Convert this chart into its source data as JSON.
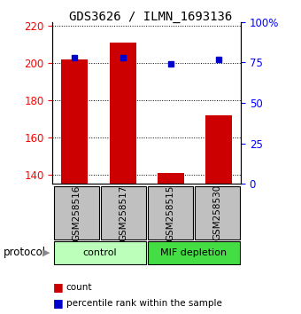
{
  "title": "GDS3626 / ILMN_1693136",
  "samples": [
    "GSM258516",
    "GSM258517",
    "GSM258515",
    "GSM258530"
  ],
  "counts": [
    202,
    211,
    141,
    172
  ],
  "percentile_ranks": [
    78,
    78,
    74,
    77
  ],
  "groups": [
    {
      "label": "control",
      "indices": [
        0,
        1
      ],
      "color": "#bbffbb"
    },
    {
      "label": "MIF depletion",
      "indices": [
        2,
        3
      ],
      "color": "#44dd44"
    }
  ],
  "ylim_left": [
    135,
    222
  ],
  "yticks_left": [
    140,
    160,
    180,
    200,
    220
  ],
  "ylim_right": [
    0,
    100
  ],
  "yticks_right": [
    0,
    25,
    50,
    75,
    100
  ],
  "ytick_labels_right": [
    "0",
    "25",
    "50",
    "75",
    "100%"
  ],
  "bar_color": "#cc0000",
  "dot_color": "#0000cc",
  "bar_width": 0.55,
  "protocol_label": "protocol",
  "legend_count_label": "count",
  "legend_percentile_label": "percentile rank within the sample",
  "sample_box_color": "#c0c0c0",
  "title_font": "monospace",
  "title_fontsize": 10
}
